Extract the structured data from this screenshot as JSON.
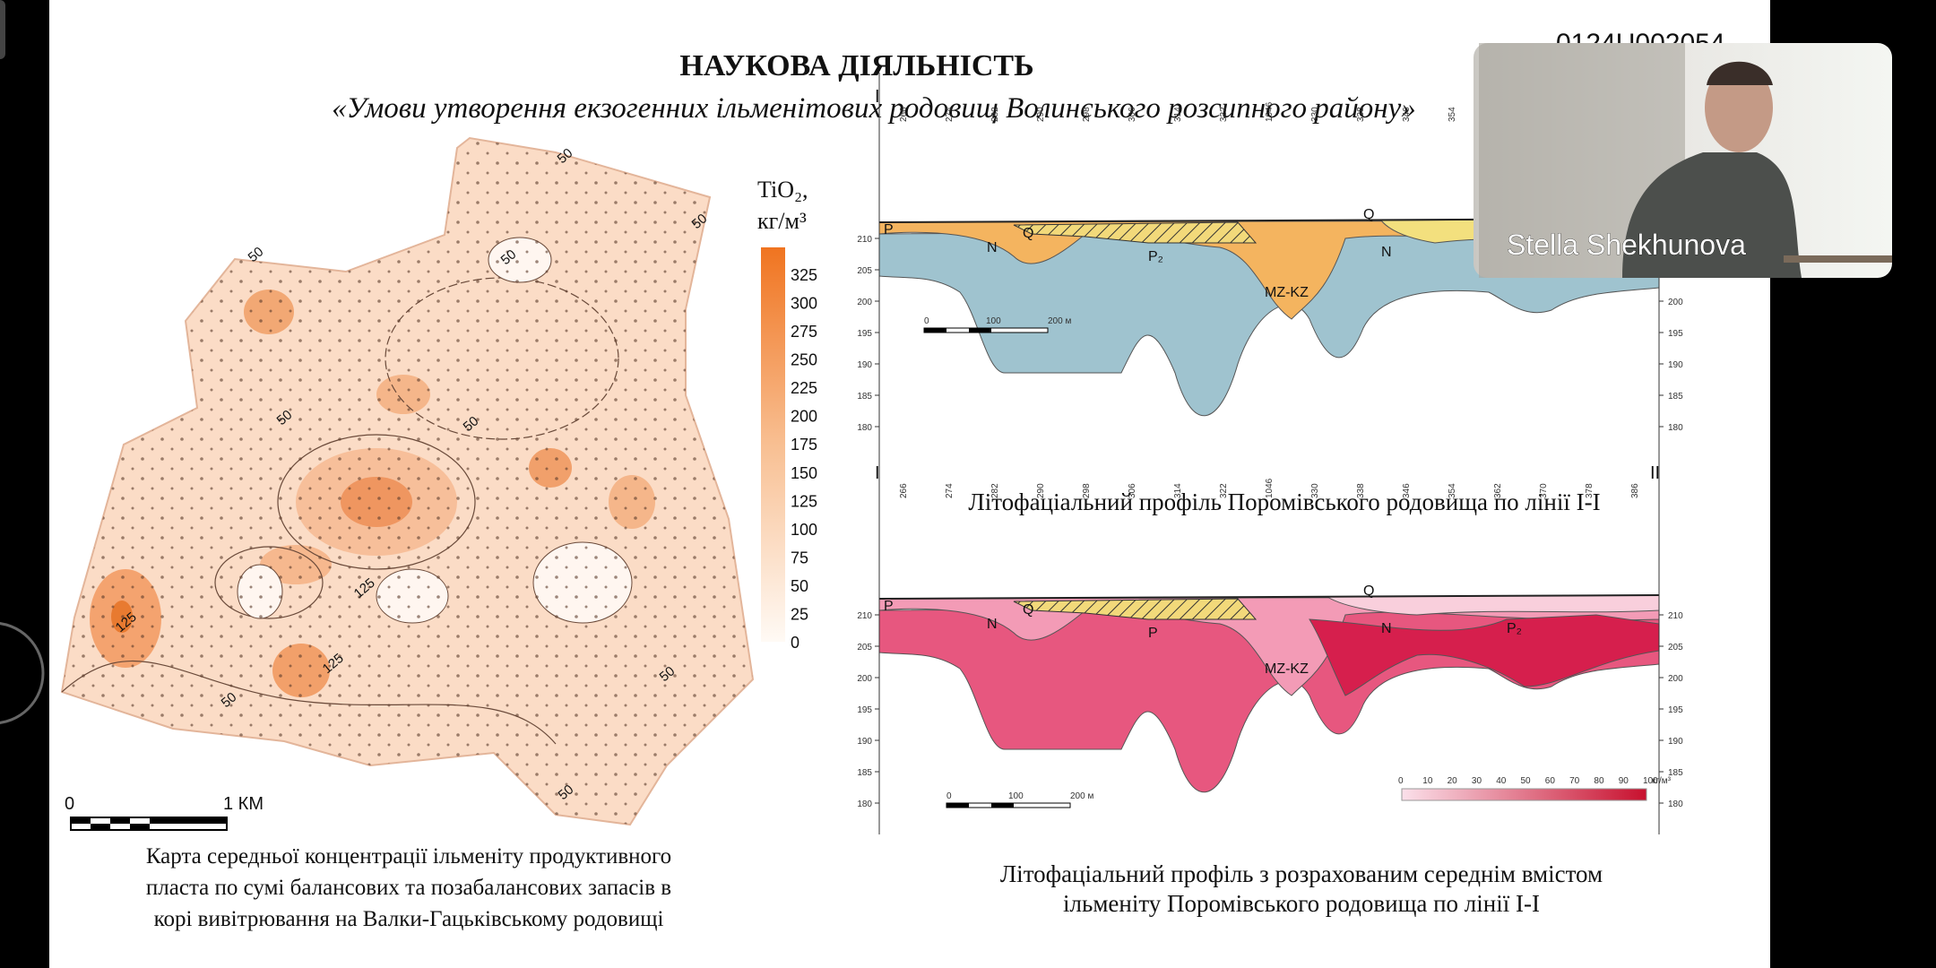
{
  "header": {
    "code": "0124U002054",
    "title": "НАУКОВА ДІЯЛЬНІСТЬ",
    "subtitle": "«Умови утворення екзогенних ільменітових родовищ Волинського розсипного району»"
  },
  "map": {
    "legend_title_1": "TiO₂,",
    "legend_title_2": "кг/м³",
    "legend_values": [
      325,
      300,
      275,
      250,
      225,
      200,
      175,
      150,
      125,
      100,
      75,
      50,
      25,
      0
    ],
    "contour_labels": [
      "50",
      "50",
      "50",
      "50",
      "50",
      "50",
      "125",
      "125",
      "125",
      "50",
      "50",
      "50"
    ],
    "scale_start": "0",
    "scale_end": "1 КМ",
    "caption": [
      "Карта середньої концентрації ільменіту продуктивного",
      "пласта по сумі балансових та позабалансових запасів в",
      "корі вивітрювання на Валки-Гацьківському родовищі"
    ]
  },
  "profile_1": {
    "line_start": "I",
    "stations": [
      "266",
      "274",
      "282",
      "290",
      "298",
      "306",
      "314",
      "322",
      "1046",
      "330",
      "338",
      "346",
      "354"
    ],
    "elevations": [
      210,
      205,
      200,
      195,
      190,
      185,
      180
    ],
    "units": [
      "P",
      "N",
      "Q",
      "P₂",
      "MZ-KZ",
      "Q",
      "N"
    ],
    "scale": [
      "0",
      "100",
      "200 м"
    ],
    "caption": "Літофаціальний профіль Поромівського родовища по лінії І-І"
  },
  "profile_2": {
    "line_start": "I",
    "line_end": "II",
    "stations": [
      "266",
      "274",
      "282",
      "290",
      "298",
      "306",
      "314",
      "322",
      "1046",
      "330",
      "338",
      "346",
      "354",
      "362",
      "370",
      "378",
      "386"
    ],
    "elevations": [
      210,
      205,
      200,
      195,
      190,
      185,
      180
    ],
    "units": [
      "P",
      "N",
      "Q",
      "P",
      "MZ-KZ",
      "Q",
      "N",
      "P₂"
    ],
    "scale": [
      "0",
      "100",
      "200 м"
    ],
    "density_scale": [
      0,
      10,
      20,
      30,
      40,
      50,
      60,
      70,
      80,
      90,
      100
    ],
    "density_unit": "кг/м³",
    "caption": [
      "Літофаціальний профіль з розрахованим середнім вмістом",
      "ільменіту Поромівського родовища по лінії І-І"
    ]
  },
  "video": {
    "participant": "Stella Shekhunova"
  }
}
